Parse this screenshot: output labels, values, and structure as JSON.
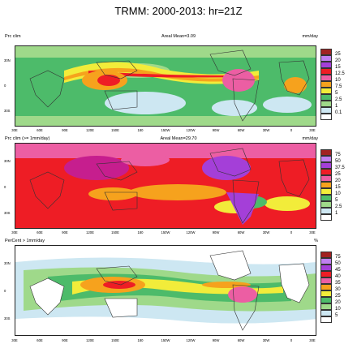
{
  "title": "TRMM: 2000-2013: hr=21Z",
  "colors": {
    "white": "#ffffff",
    "paleblue": "#cde7f2",
    "lightblue": "#a9d8ea",
    "green": "#4dbb6a",
    "lightgreen": "#9fd98a",
    "yellow": "#f2ec3a",
    "orange": "#f6a21d",
    "red": "#ee1d25",
    "pink": "#ec5ea3",
    "purple": "#a43fd8",
    "lavender": "#c07ff0",
    "darkred": "#a12222",
    "magenta": "#c61e8e"
  },
  "axes": {
    "lat_labels": [
      "30N",
      "0",
      "30S"
    ],
    "lon_labels": [
      "30E",
      "60E",
      "90E",
      "120E",
      "150E",
      "180",
      "150W",
      "120W",
      "90W",
      "60W",
      "30W",
      "0",
      "30E"
    ]
  },
  "panels": [
    {
      "id": "prc-clim",
      "left_title": "Prc clim",
      "center_title": "Areal Mean=3.09",
      "units": "mm/day",
      "levels": [
        "25",
        "20",
        "15",
        "12.5",
        "10",
        "7.5",
        "5",
        "2.5",
        "1",
        "0.1"
      ],
      "level_colors": [
        "#a12222",
        "#c07ff0",
        "#a43fd8",
        "#ee1d25",
        "#ec5ea3",
        "#f6a21d",
        "#f2ec3a",
        "#4dbb6a",
        "#9fd98a",
        "#cde7f2"
      ]
    },
    {
      "id": "prc-clim-ge-1",
      "left_title": "Prc clim (>= 1mm/day)",
      "center_title": "Areal Mean=29.70",
      "units": "mm/day",
      "levels": [
        "75",
        "50",
        "37.5",
        "25",
        "20",
        "15",
        "10",
        "5",
        "2.5",
        "1"
      ],
      "level_colors": [
        "#a12222",
        "#c07ff0",
        "#a43fd8",
        "#ee1d25",
        "#ec5ea3",
        "#f6a21d",
        "#f2ec3a",
        "#4dbb6a",
        "#9fd98a",
        "#cde7f2"
      ]
    },
    {
      "id": "percent-ge-1",
      "left_title": "PerCent > 1mm/day",
      "center_title": "",
      "units": "%",
      "levels": [
        "75",
        "50",
        "45",
        "40",
        "35",
        "30",
        "25",
        "20",
        "10",
        "5"
      ],
      "level_colors": [
        "#a12222",
        "#c07ff0",
        "#a43fd8",
        "#ee1d25",
        "#ec5ea3",
        "#f6a21d",
        "#f2ec3a",
        "#4dbb6a",
        "#9fd98a",
        "#cde7f2"
      ]
    }
  ]
}
